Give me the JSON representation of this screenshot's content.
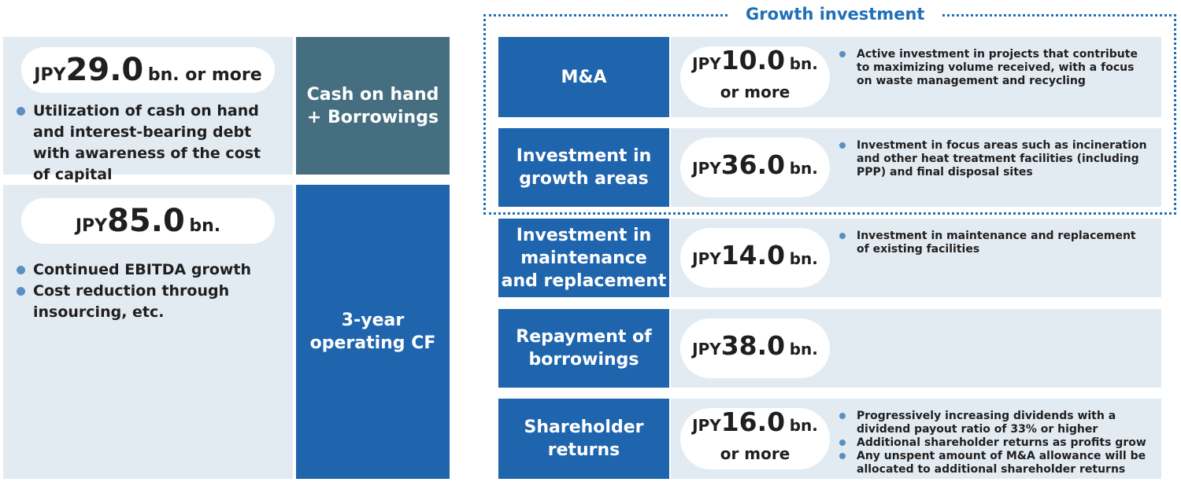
{
  "sources": [
    {
      "amount": {
        "prefix": "JPY",
        "number": "29.0",
        "suffix": "bn. or more"
      },
      "bullets": [
        "Utilization of cash on hand and interest-bearing debt with awareness of the cost of capital"
      ],
      "label": [
        "Cash on hand",
        "+ Borrowings"
      ]
    },
    {
      "amount": {
        "prefix": "JPY",
        "number": "85.0",
        "suffix": "bn."
      },
      "bullets": [
        "Continued EBITDA growth",
        "Cost reduction through insourcing, etc."
      ],
      "label": [
        "3-year",
        "operating CF"
      ]
    }
  ],
  "growth_group": {
    "title": "Growth investment"
  },
  "allocations": [
    {
      "label": [
        "M&A"
      ],
      "amount": {
        "prefix": "JPY",
        "number": "10.0",
        "suffix": "bn. or more"
      },
      "bullets": [
        "Active investment in projects that contribute to maximizing volume received, with a focus on waste management and recycling"
      ]
    },
    {
      "label": [
        "Investment in",
        "growth areas"
      ],
      "amount": {
        "prefix": "JPY",
        "number": "36.0",
        "suffix": "bn."
      },
      "bullets": [
        "Investment in focus areas such as incineration and other heat treatment facilities (including PPP) and final disposal sites"
      ]
    },
    {
      "label": [
        "Investment in",
        "maintenance",
        "and replacement"
      ],
      "amount": {
        "prefix": "JPY",
        "number": "14.0",
        "suffix": "bn."
      },
      "bullets": [
        "Investment in maintenance and replacement of existing facilities"
      ]
    },
    {
      "label": [
        "Repayment of",
        "borrowings"
      ],
      "amount": {
        "prefix": "JPY",
        "number": "38.0",
        "suffix": "bn."
      },
      "bullets": []
    },
    {
      "label": [
        "Shareholder",
        "returns"
      ],
      "amount": {
        "prefix": "JPY",
        "number": "16.0",
        "suffix": "bn. or more"
      },
      "bullets": [
        "Progressively increasing dividends with a dividend payout ratio of 33% or higher",
        "Additional shareholder returns as profits grow",
        "Any unspent amount of M&A allowance will be allocated to additional shareholder returns"
      ]
    }
  ]
}
